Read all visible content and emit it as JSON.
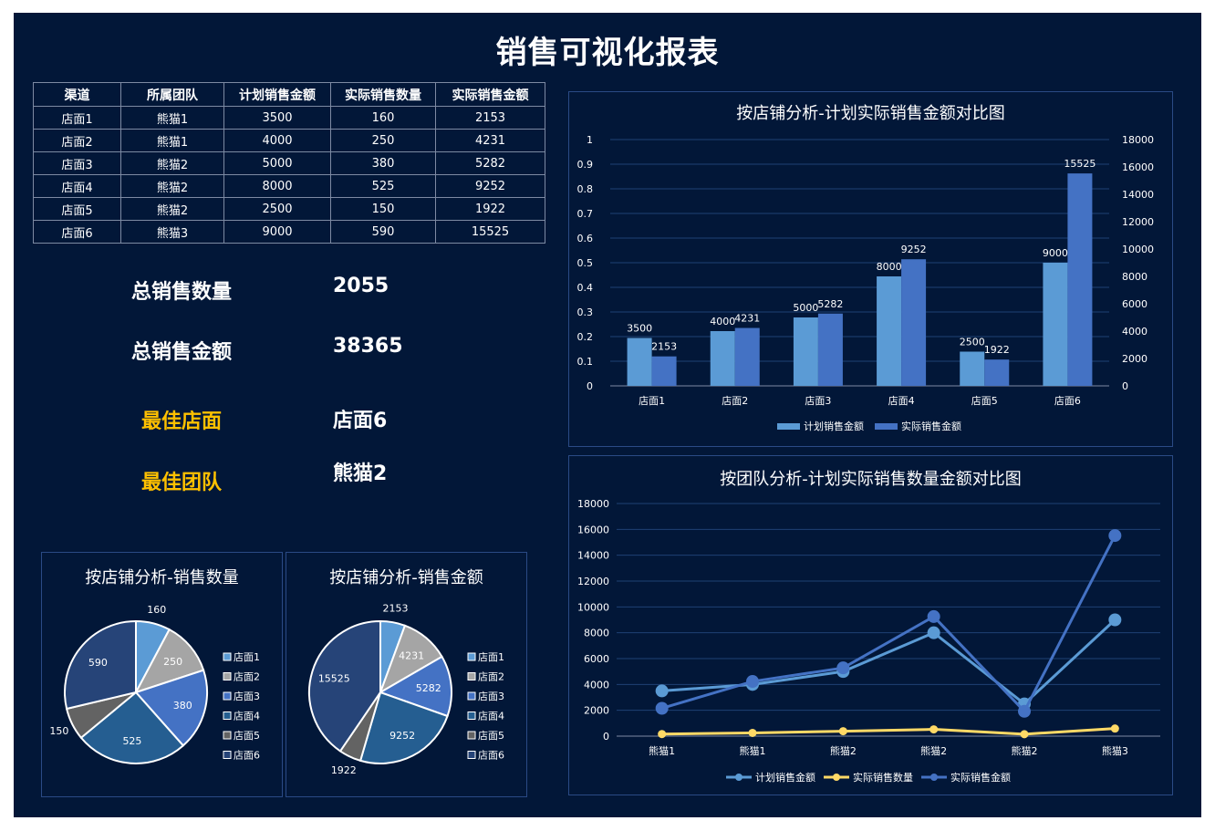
{
  "title": "销售可视化报表",
  "table": {
    "headers": [
      "渠道",
      "所属团队",
      "计划销售金额",
      "实际销售数量",
      "实际销售金额"
    ],
    "rows": [
      [
        "店面1",
        "熊猫1",
        "3500",
        "160",
        "2153"
      ],
      [
        "店面2",
        "熊猫1",
        "4000",
        "250",
        "4231"
      ],
      [
        "店面3",
        "熊猫2",
        "5000",
        "380",
        "5282"
      ],
      [
        "店面4",
        "熊猫2",
        "8000",
        "525",
        "9252"
      ],
      [
        "店面5",
        "熊猫2",
        "2500",
        "150",
        "1922"
      ],
      [
        "店面6",
        "熊猫3",
        "9000",
        "590",
        "15525"
      ]
    ]
  },
  "kpis": {
    "total_qty_label": "总销售数量",
    "total_qty_value": "2055",
    "total_amount_label": "总销售金额",
    "total_amount_value": "38365",
    "best_store_label": "最佳店面",
    "best_store_value": "店面6",
    "best_team_label": "最佳团队",
    "best_team_value": "熊猫2"
  },
  "colors": {
    "background": "#021738",
    "plan": "#5b9bd5",
    "actual_amount": "#4472c4",
    "actual_qty": "#ffd966",
    "gold": "#ffc000"
  },
  "chart_data": [
    {
      "type": "bar",
      "title": "按店铺分析-计划实际销售金额对比图",
      "categories": [
        "店面1",
        "店面2",
        "店面3",
        "店面4",
        "店面5",
        "店面6"
      ],
      "series": [
        {
          "name": "计划销售金额",
          "values": [
            3500,
            4000,
            5000,
            8000,
            2500,
            9000
          ],
          "color": "#5b9bd5"
        },
        {
          "name": "实际销售金额",
          "values": [
            2153,
            4231,
            5282,
            9252,
            1922,
            15525
          ],
          "color": "#4472c4"
        }
      ],
      "left_axis": {
        "ticks": [
          "0",
          "0.1",
          "0.2",
          "0.3",
          "0.4",
          "0.5",
          "0.6",
          "0.7",
          "0.8",
          "0.9",
          "1"
        ]
      },
      "right_axis": {
        "ticks": [
          "0",
          "2000",
          "4000",
          "6000",
          "8000",
          "10000",
          "12000",
          "14000",
          "16000",
          "18000"
        ]
      },
      "ylim": [
        0,
        18000
      ],
      "legend": "bottom",
      "grid": true
    },
    {
      "type": "line",
      "title": "按团队分析-计划实际销售数量金额对比图",
      "categories": [
        "熊猫1",
        "熊猫1",
        "熊猫2",
        "熊猫2",
        "熊猫2",
        "熊猫3"
      ],
      "series": [
        {
          "name": "计划销售金额",
          "values": [
            3500,
            4000,
            5000,
            8000,
            2500,
            9000
          ],
          "color": "#5b9bd5"
        },
        {
          "name": "实际销售数量",
          "values": [
            160,
            250,
            380,
            525,
            150,
            590
          ],
          "color": "#ffd966"
        },
        {
          "name": "实际销售金额",
          "values": [
            2153,
            4231,
            5282,
            9252,
            1922,
            15525
          ],
          "color": "#4472c4"
        }
      ],
      "y_ticks": [
        "0",
        "2000",
        "4000",
        "6000",
        "8000",
        "10000",
        "12000",
        "14000",
        "16000",
        "18000"
      ],
      "ylim": [
        0,
        18000
      ],
      "legend": "bottom",
      "grid": true
    },
    {
      "type": "pie",
      "title": "按店铺分析-销售数量",
      "categories": [
        "店面1",
        "店面2",
        "店面3",
        "店面4",
        "店面5",
        "店面6"
      ],
      "values": [
        160,
        250,
        380,
        525,
        150,
        590
      ],
      "colors": [
        "#5b9bd5",
        "#a5a5a5",
        "#4472c4",
        "#255e91",
        "#636363",
        "#264478"
      ],
      "legend": "right"
    },
    {
      "type": "pie",
      "title": "按店铺分析-销售金额",
      "categories": [
        "店面1",
        "店面2",
        "店面3",
        "店面4",
        "店面5",
        "店面6"
      ],
      "values": [
        2153,
        4231,
        5282,
        9252,
        1922,
        15525
      ],
      "colors": [
        "#5b9bd5",
        "#a5a5a5",
        "#4472c4",
        "#255e91",
        "#636363",
        "#264478"
      ],
      "legend": "right"
    }
  ]
}
